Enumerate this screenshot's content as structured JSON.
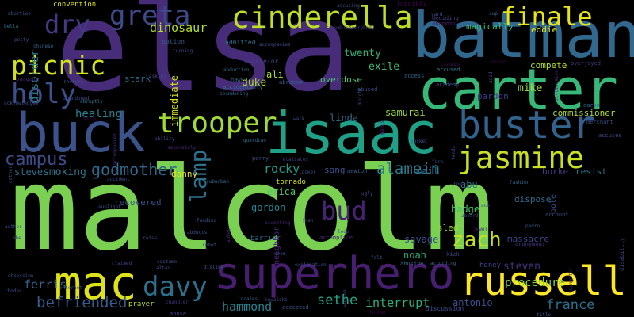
{
  "words": [
    {
      "text": "malcolm",
      "color": "#7ad151"
    },
    {
      "text": "elsa",
      "color": "#472c7a"
    },
    {
      "text": "batman",
      "color": "#31688e"
    },
    {
      "text": "carter",
      "color": "#37b878"
    },
    {
      "text": "isaac",
      "color": "#1fa187"
    },
    {
      "text": "buck",
      "color": "#3b528b"
    },
    {
      "text": "superhero",
      "color": "#481f70"
    },
    {
      "text": "russell",
      "color": "#fde725"
    },
    {
      "text": "cinderella",
      "color": "#bddf26"
    },
    {
      "text": "buster",
      "color": "#33638d"
    },
    {
      "text": "mac",
      "color": "#dde318"
    },
    {
      "text": "trooper",
      "color": "#a0da39"
    },
    {
      "text": "jasmine",
      "color": "#c8e020"
    },
    {
      "text": "finale",
      "color": "#e5e419"
    },
    {
      "text": "picnic",
      "color": "#d2e21b"
    },
    {
      "text": "greta",
      "color": "#3e4a89"
    },
    {
      "text": "holy",
      "color": "#3b518b"
    },
    {
      "text": "dry",
      "color": "#443983"
    },
    {
      "text": "davy",
      "color": "#2d708e"
    },
    {
      "text": "lamp",
      "color": "#2c728e"
    },
    {
      "text": "bud",
      "color": "#482374"
    },
    {
      "text": "campus",
      "color": "#3e4c8a"
    },
    {
      "text": "godmother",
      "color": "#31688e"
    },
    {
      "text": "alamein",
      "color": "#287d8e"
    },
    {
      "text": "befriended",
      "color": "#365c8d"
    },
    {
      "text": "zach",
      "color": "#c2df23"
    },
    {
      "text": "rocky",
      "color": "#1e9b8a"
    },
    {
      "text": "hammond",
      "color": "#25838e"
    },
    {
      "text": "sethe",
      "color": "#22a785"
    },
    {
      "text": "interrupt",
      "color": "#2ab07f"
    },
    {
      "text": "france",
      "color": "#2e6f8e"
    },
    {
      "text": "antonio",
      "color": "#3a538b"
    },
    {
      "text": "procedure",
      "color": "#85d54a"
    },
    {
      "text": "steven",
      "color": "#46327e"
    },
    {
      "text": "dinosaur",
      "color": "#b5de2b"
    },
    {
      "text": "ferris",
      "color": "#34618d"
    },
    {
      "text": "smoking",
      "color": "#297b8e"
    },
    {
      "text": "steve",
      "color": "#2d708e"
    },
    {
      "text": "healing",
      "color": "#27808e"
    },
    {
      "text": "disorder",
      "color": "#277f8e"
    },
    {
      "text": "twenty",
      "color": "#32b67a"
    },
    {
      "text": "exile",
      "color": "#3fbc73"
    },
    {
      "text": "duke",
      "color": "#a8db34"
    },
    {
      "text": "ali",
      "color": "#b2dd2d"
    },
    {
      "text": "immediate",
      "color": "#d8e219"
    },
    {
      "text": "danny",
      "color": "#e7e419"
    },
    {
      "text": "sang",
      "color": "#3a548c"
    },
    {
      "text": "abu",
      "color": "#2a778e"
    },
    {
      "text": "mail",
      "color": "#2f6c8e"
    },
    {
      "text": "badge",
      "color": "#46c06f"
    },
    {
      "text": "noah",
      "color": "#27ad81"
    },
    {
      "text": "savage",
      "color": "#3b528b"
    },
    {
      "text": "erica",
      "color": "#52c569"
    },
    {
      "text": "gordon",
      "color": "#25848e"
    },
    {
      "text": "linda",
      "color": "#2f6b8e"
    },
    {
      "text": "mike",
      "color": "#a2da37"
    },
    {
      "text": "samurai",
      "color": "#9bd93c"
    },
    {
      "text": "commissioner",
      "color": "#b0dd2f"
    },
    {
      "text": "pardon",
      "color": "#433e85"
    },
    {
      "text": "burke",
      "color": "#453882"
    },
    {
      "text": "resist",
      "color": "#287c8e"
    },
    {
      "text": "dispose",
      "color": "#2e6e8e"
    },
    {
      "text": "massacre",
      "color": "#404688"
    },
    {
      "text": "recovered",
      "color": "#3d4e8a"
    },
    {
      "text": "sled",
      "color": "#9bd93c"
    },
    {
      "text": "compete",
      "color": "#b8de29"
    },
    {
      "text": "eddie",
      "color": "#e2e418"
    },
    {
      "text": "magically",
      "color": "#3bbb75"
    },
    {
      "text": "overdose",
      "color": "#4ac16d"
    },
    {
      "text": "stark",
      "color": "#2f6b8e"
    },
    {
      "text": "convention",
      "color": "#dde318"
    },
    {
      "text": "forcibly",
      "color": "#440154"
    },
    {
      "text": "potion",
      "color": "#34608d"
    },
    {
      "text": "admitted",
      "color": "#2e6e8e"
    },
    {
      "text": "counselor",
      "color": "#424186"
    },
    {
      "text": "hawk",
      "color": "#34618d"
    },
    {
      "text": "abducted",
      "color": "#2d718e"
    },
    {
      "text": "honey",
      "color": "#414487"
    },
    {
      "text": "tornado",
      "color": "#d5e21a"
    },
    {
      "text": "barrier",
      "color": "#2c728e"
    },
    {
      "text": "prayer",
      "color": "#b5de2b"
    },
    {
      "text": "abuse",
      "color": "#424086"
    },
    {
      "text": "accused",
      "color": "#2a778e"
    },
    {
      "text": "academy",
      "color": "#3c4f8a"
    },
    {
      "text": "deciding",
      "color": "#424086"
    },
    {
      "text": "abandon",
      "color": "#482071"
    },
    {
      "text": "cup",
      "color": "#2f6b8e"
    },
    {
      "text": "abortion",
      "color": "#3b528b"
    },
    {
      "text": "bella",
      "color": "#2c738e"
    },
    {
      "text": "petty",
      "color": "#3e4989"
    },
    {
      "text": "chinese",
      "color": "#31688e"
    },
    {
      "text": "bargain",
      "color": "#482878"
    },
    {
      "text": "revives",
      "color": "#3b528b"
    },
    {
      "text": "abruptly",
      "color": "#2c728e"
    },
    {
      "text": "asking",
      "color": "#404588"
    },
    {
      "text": "turning",
      "color": "#3e4a89"
    },
    {
      "text": "abduction",
      "color": "#2f6c8e"
    },
    {
      "text": "abandoning",
      "color": "#33638d"
    },
    {
      "text": "accidentally",
      "color": "#2a788e"
    },
    {
      "text": "abraham",
      "color": "#355f8d"
    },
    {
      "text": "accepting",
      "color": "#482475"
    },
    {
      "text": "accompanies",
      "color": "#3d4d8a"
    },
    {
      "text": "resembles",
      "color": "#453781"
    },
    {
      "text": "everybody",
      "color": "#433d84"
    },
    {
      "text": "accusing",
      "color": "#3e4a89"
    },
    {
      "text": "access",
      "color": "#32658e"
    },
    {
      "text": "abused",
      "color": "#3e4989"
    },
    {
      "text": "travis",
      "color": "#471164"
    },
    {
      "text": "oscar",
      "color": "#46085c"
    },
    {
      "text": "billionaire",
      "color": "#472d7b"
    },
    {
      "text": "overjoyed",
      "color": "#453882"
    },
    {
      "text": "aaron",
      "color": "#2f6b8e"
    },
    {
      "text": "merchant",
      "color": "#3e4c8a"
    },
    {
      "text": "accuses",
      "color": "#3e4989"
    },
    {
      "text": "fashion",
      "color": "#32648e"
    },
    {
      "text": "account",
      "color": "#3c4f8a"
    },
    {
      "text": "pedro",
      "color": "#365c8d"
    },
    {
      "text": "anonymous",
      "color": "#453781"
    },
    {
      "text": "youngster",
      "color": "#482576"
    },
    {
      "text": "title",
      "color": "#3b528b"
    },
    {
      "text": "according",
      "color": "#34608d"
    },
    {
      "text": "abusive",
      "color": "#31688e"
    },
    {
      "text": "kick",
      "color": "#3f4889"
    },
    {
      "text": "walk",
      "color": "#3a548c"
    },
    {
      "text": "guardian",
      "color": "#2f6c8e"
    },
    {
      "text": "perry",
      "color": "#3b528b"
    },
    {
      "text": "retaliates",
      "color": "#433e85"
    },
    {
      "text": "locker",
      "color": "#3d4d8a"
    },
    {
      "text": "newton",
      "color": "#355f8d"
    },
    {
      "text": "ugly",
      "color": "#3e4989"
    },
    {
      "text": "loop",
      "color": "#38588c"
    },
    {
      "text": "accomplice",
      "color": "#482878"
    },
    {
      "text": "felt",
      "color": "#3b528b"
    },
    {
      "text": "doom",
      "color": "#3f4788"
    },
    {
      "text": "explanation",
      "color": "#3b528b"
    },
    {
      "text": "accepted",
      "color": "#3a548c"
    },
    {
      "text": "luther",
      "color": "#440154"
    },
    {
      "text": "discussion",
      "color": "#3e4a89"
    },
    {
      "text": "kowalski",
      "color": "#3e4989"
    },
    {
      "text": "locales",
      "color": "#33638d"
    },
    {
      "text": "costume",
      "color": "#3e4c8a"
    },
    {
      "text": "chandler",
      "color": "#46337f"
    },
    {
      "text": "dislike",
      "color": "#3b528b"
    },
    {
      "text": "abducts",
      "color": "#3d4e8a"
    },
    {
      "text": "claimed",
      "color": "#3f4788"
    },
    {
      "text": "altar",
      "color": "#3e4989"
    },
    {
      "text": "robot",
      "color": "#3b528b"
    },
    {
      "text": "suburban",
      "color": "#31688e"
    },
    {
      "text": "raise",
      "color": "#3e4989"
    },
    {
      "text": "joah",
      "color": "#3e4989"
    },
    {
      "text": "abbey",
      "color": "#482677"
    },
    {
      "text": "accident",
      "color": "#3e4a89"
    },
    {
      "text": "sunlight",
      "color": "#3b528b"
    },
    {
      "text": "author",
      "color": "#3a548c"
    },
    {
      "text": "abe",
      "color": "#3e4989"
    },
    {
      "text": "obsession",
      "color": "#3b528b"
    },
    {
      "text": "rhodes",
      "color": "#3e4a89"
    },
    {
      "text": "internet",
      "color": "#3e4989"
    },
    {
      "text": "accompanied",
      "color": "#46327e"
    },
    {
      "text": "funding",
      "color": "#3b528b"
    },
    {
      "text": "ability",
      "color": "#3e4989"
    },
    {
      "text": "separately",
      "color": "#482374"
    },
    {
      "text": "gather",
      "color": "#3e4a89"
    },
    {
      "text": "abandoned",
      "color": "#3e4989"
    },
    {
      "text": "acknowledges",
      "color": "#3b528b"
    },
    {
      "text": "stray",
      "color": "#440154"
    },
    {
      "text": "fork",
      "color": "#3e4989"
    },
    {
      "text": "tends",
      "color": "#3b528b"
    },
    {
      "text": "ace",
      "color": "#3e4989"
    },
    {
      "text": "aboard",
      "color": "#3e4a89"
    },
    {
      "text": "jewel",
      "color": "#481c6e"
    },
    {
      "text": "jacket",
      "color": "#3b528b"
    },
    {
      "text": "row",
      "color": "#3e4989"
    },
    {
      "text": "acid",
      "color": "#3e4989"
    },
    {
      "text": "pole",
      "color": "#3b528b"
    },
    {
      "text": "yard",
      "color": "#3e4989"
    },
    {
      "text": "neighbor",
      "color": "#482475"
    },
    {
      "text": "disability",
      "color": "#3e4989"
    },
    {
      "text": "knight",
      "color": "#3b528b"
    },
    {
      "text": "wooden",
      "color": "#3e4989"
    },
    {
      "text": "gangs",
      "color": "#482071"
    }
  ]
}
